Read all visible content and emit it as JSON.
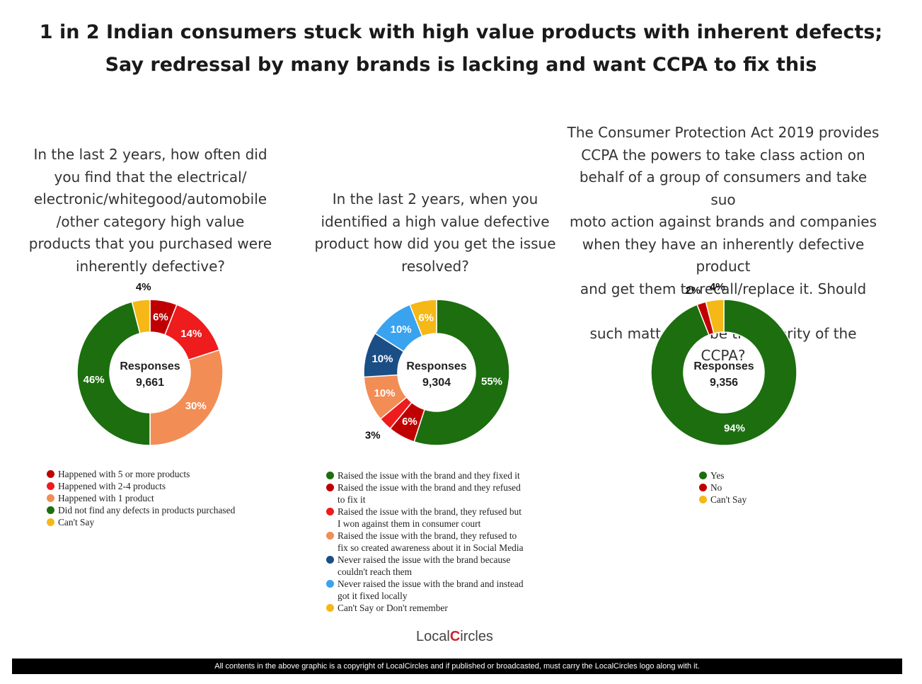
{
  "title": {
    "line1": "1 in 2 Indian consumers stuck with high value products with inherent defects;",
    "line2": "Say redressal by many brands is lacking and want CCPA to fix this"
  },
  "chart_data": [
    {
      "type": "pie",
      "donut": true,
      "title": "In the last 2 years, how often did you find that the electrical/ electronic/whitegood/automobile /other category high value products that you purchased were inherently defective?",
      "question_lines": [
        "In the last 2 years, how often did",
        "you find that the electrical/",
        "electronic/whitegood/automobile",
        "/other category high value",
        "products that you purchased were",
        "inherently defective?"
      ],
      "center_label": "Responses",
      "center_value": "9,661",
      "slices": [
        {
          "label": "Happened with 5 or more products",
          "value": 6,
          "color": "#c00000",
          "pct": "6%"
        },
        {
          "label": "Happened with 2-4 products",
          "value": 14,
          "color": "#ee1c1c",
          "pct": "14%"
        },
        {
          "label": "Happened with 1 product",
          "value": 30,
          "color": "#f28d55",
          "pct": "30%"
        },
        {
          "label": "Did not find any defects in products purchased",
          "value": 46,
          "color": "#1c6e0f",
          "pct": "46%"
        },
        {
          "label": "Can't Say",
          "value": 4,
          "color": "#f5b816",
          "pct": "4%"
        }
      ]
    },
    {
      "type": "pie",
      "donut": true,
      "title": "In the last 2 years, when you identified a high value defective product how did you get the issue resolved?",
      "question_lines": [
        "In the last 2 years, when you",
        "identified a high value defective",
        "product how did you get the issue",
        "resolved?"
      ],
      "center_label": "Responses",
      "center_value": "9,304",
      "slices": [
        {
          "label": "Raised the issue with the brand and they fixed it",
          "value": 55,
          "color": "#1c6e0f",
          "pct": "55%"
        },
        {
          "label": "Raised the issue with the brand and they refused to fix it",
          "value": 6,
          "color": "#c00000",
          "pct": "6%"
        },
        {
          "label": "Raised the issue with the brand, they refused but I won against them in consumer court",
          "value": 3,
          "color": "#ee1c1c",
          "pct": "3%"
        },
        {
          "label": "Raised the issue with the brand, they refused to fix so created awareness about it in Social Media",
          "value": 10,
          "color": "#f28d55",
          "pct": "10%"
        },
        {
          "label": "Never raised the issue with the brand because couldn't reach them",
          "value": 10,
          "color": "#1b4e85",
          "pct": "10%"
        },
        {
          "label": "Never raised the issue with the brand and instead got it fixed locally",
          "value": 10,
          "color": "#39a3f0",
          "pct": "10%"
        },
        {
          "label": "Can't Say or Don't remember",
          "value": 6,
          "color": "#f5b816",
          "pct": "6%"
        }
      ],
      "legend_lines": [
        [
          "Raised the issue with the brand and they fixed it"
        ],
        [
          "Raised the issue with the brand and they refused",
          "to fix it"
        ],
        [
          "Raised the issue with the brand, they refused but",
          "I won against them in consumer court"
        ],
        [
          "Raised the issue with the brand, they refused to",
          "fix so created awareness about it in Social Media"
        ],
        [
          "Never raised the issue with the brand because",
          "couldn't reach them"
        ],
        [
          "Never raised the issue with the brand and instead",
          "got it fixed locally"
        ],
        [
          "Can't Say or Don't remember"
        ]
      ]
    },
    {
      "type": "pie",
      "donut": true,
      "title": "The Consumer Protection Act 2019 provides CCPA the powers to take class action on behalf of a group of consumers and take suo moto action against brands and companies when they have an inherently defective product and get them to recall/replace it. Should taking such matters up be the priority of the CCPA?",
      "question_lines": [
        "The Consumer Protection Act 2019 provides",
        "CCPA the powers to take class action on",
        "behalf of a group of consumers and take suo",
        "moto action against brands and companies",
        "when they have an inherently defective product",
        "and get them to recall/replace it. Should taking",
        "such matters up be the priority of the CCPA?"
      ],
      "center_label": "Responses",
      "center_value": "9,356",
      "slices": [
        {
          "label": "Yes",
          "value": 94,
          "color": "#1c6e0f",
          "pct": "94%"
        },
        {
          "label": "No",
          "value": 2,
          "color": "#c00000",
          "pct": "2%"
        },
        {
          "label": "Can't Say",
          "value": 4,
          "color": "#f5b816",
          "pct": "4%"
        }
      ]
    }
  ],
  "logo": {
    "part1": "Local",
    "part2": "C",
    "part3": "ircles"
  },
  "footer": "All contents in the above graphic is a copyright of LocalCircles and if published or broadcasted, must carry the LocalCircles logo along with it."
}
